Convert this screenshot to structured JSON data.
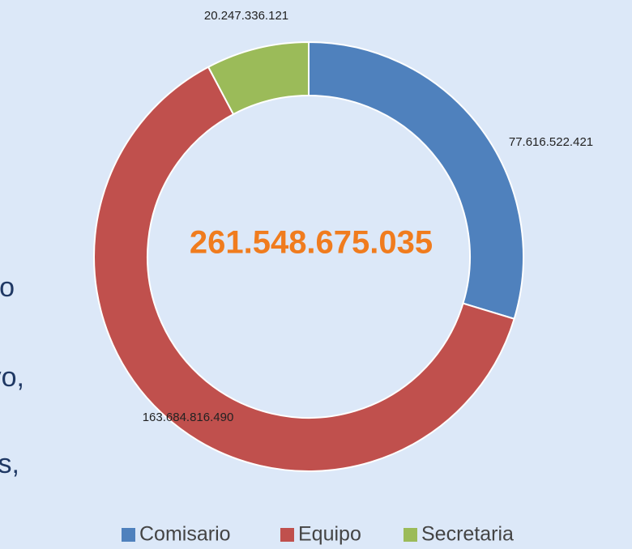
{
  "side_text": [
    "o",
    "vo,",
    "s,"
  ],
  "chart_data": {
    "type": "donut",
    "categories": [
      "Comisario",
      "Equipo",
      "Secretaria"
    ],
    "values": [
      77616522421,
      163684816490,
      20247336121
    ],
    "value_labels": [
      "77.616.522.421",
      "163.684.816.490",
      "20.247.336.121"
    ],
    "colors": [
      "#4f81bd",
      "#c0504d",
      "#9bbb59"
    ],
    "center_label": {
      "value": 261548675035,
      "label": "261.548.675.035"
    },
    "legend": "bottom"
  }
}
